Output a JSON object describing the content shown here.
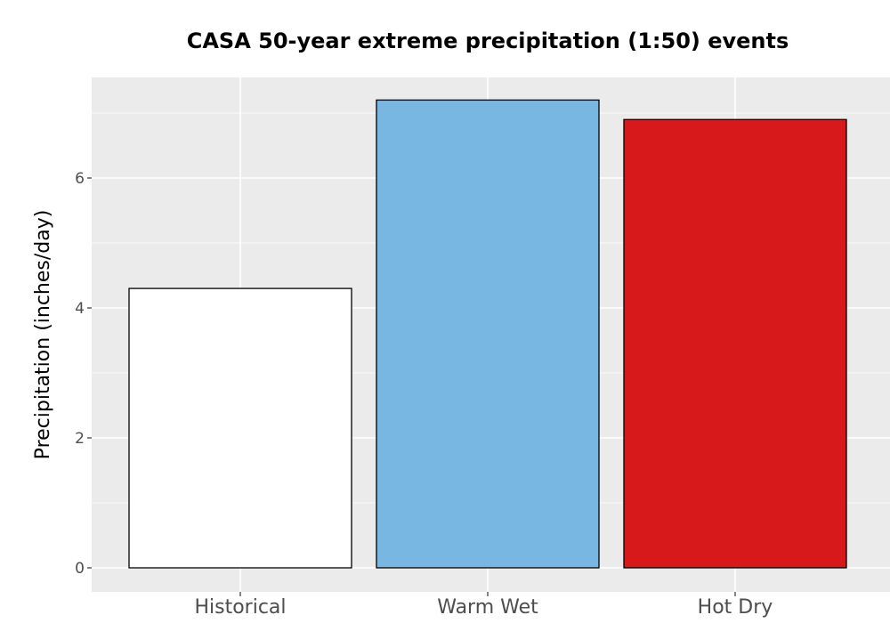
{
  "chart_data": {
    "type": "bar",
    "title": "CASA 50-year extreme precipitation (1:50) events",
    "xlabel": "",
    "ylabel": "Precipitation (inches/day)",
    "categories": [
      "Historical",
      "Warm Wet",
      "Hot Dry"
    ],
    "values": [
      4.3,
      7.2,
      6.9
    ],
    "colors": [
      "#ffffff",
      "#78b7e1",
      "#d7191c"
    ],
    "ylim": [
      0,
      7.55
    ],
    "yticks": [
      0,
      2,
      4,
      6
    ],
    "grid": true,
    "legend": "none",
    "panel_background": "#ebebeb",
    "bar_outline": "#000000"
  }
}
